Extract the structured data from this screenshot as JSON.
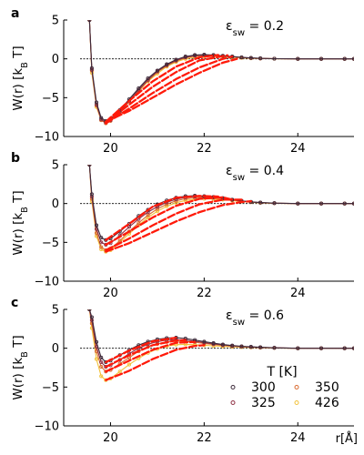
{
  "colors": {
    "300": "#3d2a3a",
    "325": "#8e2f43",
    "350": "#d96a2f",
    "426": "#f2c23a",
    "fit": "#ff1a0a",
    "axis": "#000000"
  },
  "legend": {
    "title": "T [K]",
    "entries": [
      "300",
      "325",
      "350",
      "426"
    ]
  },
  "x_unit_label": "r[Å]",
  "chart_data": [
    {
      "type": "line",
      "panel_letter": "a",
      "annotation": "ε_sw = 0.2",
      "ylabel": "W(r) [k_B T]",
      "xlim": [
        19.0,
        25.2
      ],
      "ylim": [
        -10,
        5
      ],
      "xticks": [
        20,
        22,
        24
      ],
      "yticks": [
        -10,
        -5,
        0,
        5
      ],
      "reference_line_y": 0,
      "series": [
        {
          "name": "300",
          "x": [
            19.55,
            19.6,
            19.7,
            19.8,
            19.9,
            20.0,
            20.2,
            20.4,
            20.6,
            20.8,
            21.0,
            21.2,
            21.4,
            21.6,
            21.8,
            22.0,
            22.2,
            22.4,
            22.6,
            22.8,
            23.0,
            23.2,
            23.5,
            24.0,
            24.5,
            25.0,
            25.2
          ],
          "y": [
            5.0,
            -1.2,
            -5.6,
            -7.6,
            -8.0,
            -7.7,
            -6.6,
            -5.2,
            -3.8,
            -2.5,
            -1.5,
            -0.7,
            -0.1,
            0.3,
            0.5,
            0.55,
            0.5,
            0.4,
            0.3,
            0.2,
            0.12,
            0.07,
            0.02,
            0.0,
            0.0,
            0.0,
            0.0
          ]
        },
        {
          "name": "325",
          "x": [
            19.55,
            19.6,
            19.7,
            19.8,
            19.9,
            20.0,
            20.2,
            20.4,
            20.6,
            20.8,
            21.0,
            21.2,
            21.4,
            21.6,
            21.8,
            22.0,
            22.2,
            22.4,
            22.6,
            22.8,
            23.0,
            23.2,
            23.5,
            24.0,
            24.5,
            25.0,
            25.2
          ],
          "y": [
            5.0,
            -1.4,
            -5.9,
            -7.8,
            -8.2,
            -7.9,
            -6.8,
            -5.4,
            -4.0,
            -2.7,
            -1.6,
            -0.8,
            -0.2,
            0.2,
            0.42,
            0.5,
            0.46,
            0.38,
            0.28,
            0.18,
            0.1,
            0.06,
            0.02,
            0.0,
            0.0,
            0.0,
            0.0
          ]
        },
        {
          "name": "350",
          "x": [
            19.55,
            19.6,
            19.7,
            19.8,
            19.9,
            20.0,
            20.2,
            20.4,
            20.6,
            20.8,
            21.0,
            21.2,
            21.4,
            21.6,
            21.8,
            22.0,
            22.2,
            22.4,
            22.6,
            22.8,
            23.0,
            23.2,
            23.5,
            24.0,
            24.5,
            25.0,
            25.2
          ],
          "y": [
            5.0,
            -1.5,
            -6.0,
            -7.9,
            -8.3,
            -8.0,
            -6.9,
            -5.5,
            -4.1,
            -2.8,
            -1.7,
            -0.9,
            -0.3,
            0.15,
            0.35,
            0.45,
            0.42,
            0.35,
            0.25,
            0.16,
            0.09,
            0.05,
            0.02,
            0.0,
            0.0,
            0.0,
            0.0
          ]
        },
        {
          "name": "426",
          "x": [
            19.55,
            19.6,
            19.7,
            19.8,
            19.9,
            20.0,
            20.2,
            20.4,
            20.6,
            20.8,
            21.0,
            21.2,
            21.4,
            21.6,
            21.8,
            22.0,
            22.2,
            22.4,
            22.6,
            22.8,
            23.0,
            23.2,
            23.5,
            24.0,
            24.5,
            25.0,
            25.2
          ],
          "y": [
            5.0,
            -1.8,
            -6.2,
            -7.9,
            -8.1,
            -7.8,
            -6.8,
            -5.5,
            -4.2,
            -2.9,
            -1.9,
            -1.0,
            -0.4,
            0.0,
            0.2,
            0.3,
            0.3,
            0.25,
            0.18,
            0.12,
            0.07,
            0.04,
            0.01,
            0.0,
            0.0,
            0.0,
            0.0
          ]
        }
      ],
      "fits": [
        {
          "x": [
            19.9,
            20.4,
            20.9,
            21.4,
            21.9,
            22.3
          ],
          "y": [
            -8.1,
            -5.4,
            -2.9,
            -1.0,
            0.2,
            0.5
          ]
        },
        {
          "x": [
            19.9,
            20.4,
            20.9,
            21.4,
            21.9,
            22.5
          ],
          "y": [
            -8.2,
            -5.9,
            -3.6,
            -1.7,
            -0.2,
            0.45
          ]
        },
        {
          "x": [
            19.9,
            20.4,
            20.9,
            21.4,
            21.9,
            22.4,
            22.6
          ],
          "y": [
            -8.3,
            -6.4,
            -4.4,
            -2.6,
            -1.1,
            0.0,
            0.3
          ]
        },
        {
          "x": [
            19.9,
            20.4,
            20.9,
            21.4,
            21.9,
            22.4,
            22.7
          ],
          "y": [
            -8.1,
            -6.7,
            -5.0,
            -3.3,
            -1.8,
            -0.5,
            0.0
          ]
        }
      ]
    },
    {
      "type": "line",
      "panel_letter": "b",
      "annotation": "ε_sw = 0.4",
      "ylabel": "W(r) [k_B T]",
      "xlim": [
        19.0,
        25.2
      ],
      "ylim": [
        -10,
        5
      ],
      "xticks": [
        20,
        22,
        24
      ],
      "yticks": [
        -10,
        -5,
        0,
        5
      ],
      "reference_line_y": 0,
      "series": [
        {
          "name": "300",
          "x": [
            19.55,
            19.6,
            19.7,
            19.8,
            19.9,
            20.0,
            20.2,
            20.4,
            20.6,
            20.8,
            21.0,
            21.2,
            21.4,
            21.6,
            21.8,
            22.0,
            22.2,
            22.4,
            22.6,
            22.8,
            23.0,
            23.2,
            23.5,
            24.0,
            24.5,
            25.0,
            25.2
          ],
          "y": [
            5.0,
            1.2,
            -2.8,
            -4.4,
            -4.7,
            -4.5,
            -3.6,
            -2.6,
            -1.6,
            -0.8,
            -0.1,
            0.4,
            0.75,
            0.95,
            1.0,
            0.95,
            0.85,
            0.7,
            0.5,
            0.35,
            0.22,
            0.13,
            0.05,
            0.0,
            0.0,
            0.0,
            0.0
          ]
        },
        {
          "name": "325",
          "x": [
            19.55,
            19.6,
            19.7,
            19.8,
            19.9,
            20.0,
            20.2,
            20.4,
            20.6,
            20.8,
            21.0,
            21.2,
            21.4,
            21.6,
            21.8,
            22.0,
            22.2,
            22.4,
            22.6,
            22.8,
            23.0,
            23.2,
            23.5,
            24.0,
            24.5,
            25.0,
            25.2
          ],
          "y": [
            5.0,
            0.9,
            -3.3,
            -5.0,
            -5.3,
            -5.1,
            -4.1,
            -3.0,
            -2.0,
            -1.1,
            -0.4,
            0.15,
            0.55,
            0.8,
            0.9,
            0.9,
            0.8,
            0.66,
            0.48,
            0.33,
            0.2,
            0.12,
            0.04,
            0.0,
            0.0,
            0.0,
            0.0
          ]
        },
        {
          "name": "350",
          "x": [
            19.55,
            19.6,
            19.7,
            19.8,
            19.9,
            20.0,
            20.2,
            20.4,
            20.6,
            20.8,
            21.0,
            21.2,
            21.4,
            21.6,
            21.8,
            22.0,
            22.2,
            22.4,
            22.6,
            22.8,
            23.0,
            23.2,
            23.5,
            24.0,
            24.5,
            25.0,
            25.2
          ],
          "y": [
            5.0,
            0.6,
            -3.8,
            -5.6,
            -6.0,
            -5.8,
            -4.8,
            -3.6,
            -2.5,
            -1.5,
            -0.7,
            -0.1,
            0.35,
            0.62,
            0.75,
            0.78,
            0.72,
            0.6,
            0.45,
            0.3,
            0.18,
            0.1,
            0.04,
            0.0,
            0.0,
            0.0,
            0.0
          ]
        },
        {
          "name": "426",
          "x": [
            19.55,
            19.6,
            19.7,
            19.8,
            19.9,
            20.0,
            20.2,
            20.4,
            20.6,
            20.8,
            21.0,
            21.2,
            21.4,
            21.6,
            21.8,
            22.0,
            22.2,
            22.4,
            22.6,
            22.8,
            23.0,
            23.2,
            23.5,
            24.0,
            24.5,
            25.0,
            25.2
          ],
          "y": [
            5.0,
            0.3,
            -4.2,
            -5.9,
            -6.2,
            -6.0,
            -5.0,
            -3.9,
            -2.8,
            -1.8,
            -1.0,
            -0.35,
            0.1,
            0.4,
            0.55,
            0.6,
            0.58,
            0.5,
            0.38,
            0.26,
            0.16,
            0.09,
            0.03,
            0.0,
            0.0,
            0.0,
            0.0
          ]
        }
      ],
      "fits": [
        {
          "x": [
            19.9,
            20.4,
            20.9,
            21.4,
            21.9,
            22.3
          ],
          "y": [
            -4.7,
            -2.6,
            -0.4,
            0.75,
            0.98,
            0.9
          ]
        },
        {
          "x": [
            19.9,
            20.4,
            20.9,
            21.4,
            21.9,
            22.4,
            22.6
          ],
          "y": [
            -5.3,
            -3.6,
            -1.8,
            -0.3,
            0.6,
            0.8,
            0.5
          ]
        },
        {
          "x": [
            19.9,
            20.4,
            20.9,
            21.4,
            21.9,
            22.4,
            22.8
          ],
          "y": [
            -6.0,
            -4.5,
            -2.8,
            -1.3,
            -0.1,
            0.5,
            0.5
          ]
        },
        {
          "x": [
            19.9,
            20.4,
            20.9,
            21.4,
            21.9,
            22.4,
            22.8,
            23.0
          ],
          "y": [
            -6.2,
            -5.1,
            -3.7,
            -2.3,
            -1.1,
            -0.2,
            0.2,
            0.3
          ]
        }
      ]
    },
    {
      "type": "line",
      "panel_letter": "c",
      "annotation": "ε_sw = 0.6",
      "ylabel": "W(r) [k_B T]",
      "xlim": [
        19.0,
        25.2
      ],
      "ylim": [
        -10,
        5
      ],
      "xticks": [
        20,
        22,
        24
      ],
      "yticks": [
        -10,
        -5,
        0,
        5
      ],
      "reference_line_y": 0,
      "series": [
        {
          "name": "300",
          "x": [
            19.55,
            19.6,
            19.7,
            19.8,
            19.9,
            20.0,
            20.2,
            20.4,
            20.6,
            20.8,
            21.0,
            21.2,
            21.4,
            21.6,
            21.8,
            22.0,
            22.2,
            22.4,
            22.6,
            22.8,
            23.0,
            23.2,
            23.5,
            24.0,
            24.5,
            25.0,
            25.2
          ],
          "y": [
            5.0,
            4.0,
            0.8,
            -1.2,
            -1.8,
            -1.6,
            -0.9,
            -0.2,
            0.4,
            0.85,
            1.15,
            1.3,
            1.35,
            1.25,
            1.05,
            0.85,
            0.65,
            0.48,
            0.35,
            0.25,
            0.18,
            0.12,
            0.06,
            0.0,
            0.0,
            0.0,
            0.0
          ]
        },
        {
          "name": "325",
          "x": [
            19.55,
            19.6,
            19.7,
            19.8,
            19.9,
            20.0,
            20.2,
            20.4,
            20.6,
            20.8,
            21.0,
            21.2,
            21.4,
            21.6,
            21.8,
            22.0,
            22.2,
            22.4,
            22.6,
            22.8,
            23.0,
            23.2,
            23.5,
            24.0,
            24.5,
            25.0,
            25.2
          ],
          "y": [
            5.0,
            3.6,
            0.2,
            -1.8,
            -2.4,
            -2.2,
            -1.5,
            -0.7,
            0.0,
            0.5,
            0.85,
            1.05,
            1.1,
            1.05,
            0.9,
            0.72,
            0.55,
            0.42,
            0.3,
            0.22,
            0.16,
            0.1,
            0.05,
            0.0,
            0.0,
            0.0,
            0.0
          ]
        },
        {
          "name": "350",
          "x": [
            19.55,
            19.6,
            19.7,
            19.8,
            19.9,
            20.0,
            20.2,
            20.4,
            20.6,
            20.8,
            21.0,
            21.2,
            21.4,
            21.6,
            21.8,
            22.0,
            22.2,
            22.4,
            22.6,
            22.8,
            23.0,
            23.2,
            23.5,
            24.0,
            24.5,
            25.0,
            25.2
          ],
          "y": [
            5.0,
            3.2,
            -0.4,
            -2.4,
            -3.0,
            -2.8,
            -2.0,
            -1.2,
            -0.4,
            0.2,
            0.55,
            0.8,
            0.9,
            0.88,
            0.78,
            0.62,
            0.48,
            0.36,
            0.26,
            0.2,
            0.14,
            0.09,
            0.04,
            0.0,
            0.0,
            0.0,
            0.0
          ]
        },
        {
          "name": "426",
          "x": [
            19.55,
            19.6,
            19.7,
            19.8,
            19.9,
            20.0,
            20.2,
            20.4,
            20.6,
            20.8,
            21.0,
            21.2,
            21.4,
            21.6,
            21.8,
            22.0,
            22.2,
            22.4,
            22.6,
            22.8,
            23.0,
            23.2,
            23.5,
            24.0,
            24.5,
            25.0,
            25.2
          ],
          "y": [
            5.0,
            2.6,
            -1.4,
            -3.6,
            -4.1,
            -3.9,
            -3.0,
            -2.1,
            -1.3,
            -0.6,
            -0.1,
            0.25,
            0.45,
            0.5,
            0.45,
            0.38,
            0.3,
            0.24,
            0.18,
            0.14,
            0.1,
            0.07,
            0.03,
            0.0,
            0.0,
            0.0,
            0.0
          ]
        }
      ],
      "fits": [
        {
          "x": [
            19.9,
            20.4,
            20.9,
            21.4
          ],
          "y": [
            -1.8,
            -0.3,
            0.9,
            1.35
          ]
        },
        {
          "x": [
            19.9,
            20.4,
            20.9,
            21.4,
            21.6
          ],
          "y": [
            -2.4,
            -0.9,
            0.4,
            1.0,
            1.05
          ]
        },
        {
          "x": [
            19.9,
            20.4,
            20.9,
            21.4,
            21.8
          ],
          "y": [
            -3.0,
            -1.6,
            -0.2,
            0.7,
            0.8
          ]
        },
        {
          "x": [
            19.9,
            20.4,
            20.9,
            21.4,
            21.8,
            22.0
          ],
          "y": [
            -4.1,
            -2.9,
            -1.4,
            -0.2,
            0.3,
            0.38
          ]
        }
      ]
    }
  ]
}
